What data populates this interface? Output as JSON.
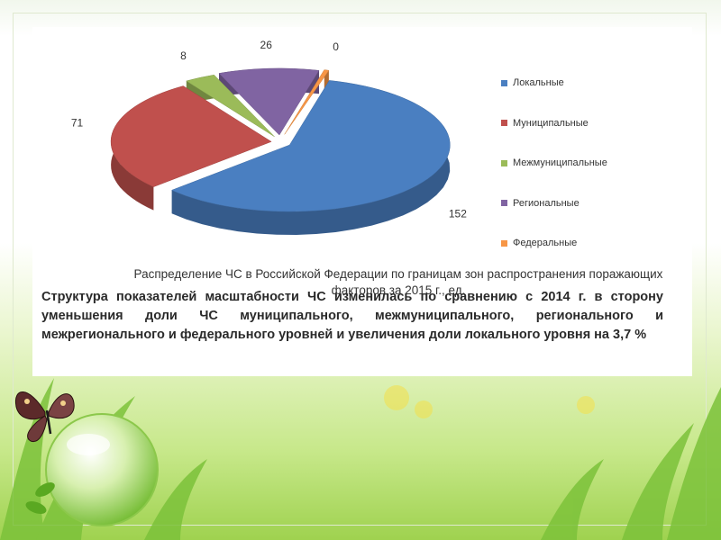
{
  "chart_data": {
    "type": "pie",
    "title": "",
    "categories": [
      "Локальные",
      "Муниципальные",
      "Межмуниципальные",
      "Региональные",
      "Федеральные"
    ],
    "values": [
      152,
      71,
      8,
      26,
      0
    ],
    "colors": [
      "#4a7fc1",
      "#c0504d",
      "#9bbb59",
      "#8064a2",
      "#f79646"
    ],
    "legend_position": "right",
    "style": "3d-exploded"
  },
  "caption": "Распределение ЧС в Российской Федерации по границам зон распространения поражающих факторов за 2015 г., ед.",
  "body_text": "Структура показателей масштабности ЧС изменилась по сравнению с 2014 г. в сторону уменьшения доли ЧС муниципального, межмуниципального, регионального и межрегионального и федерального уровней и увеличения доли локального уровня на 3,7 %"
}
